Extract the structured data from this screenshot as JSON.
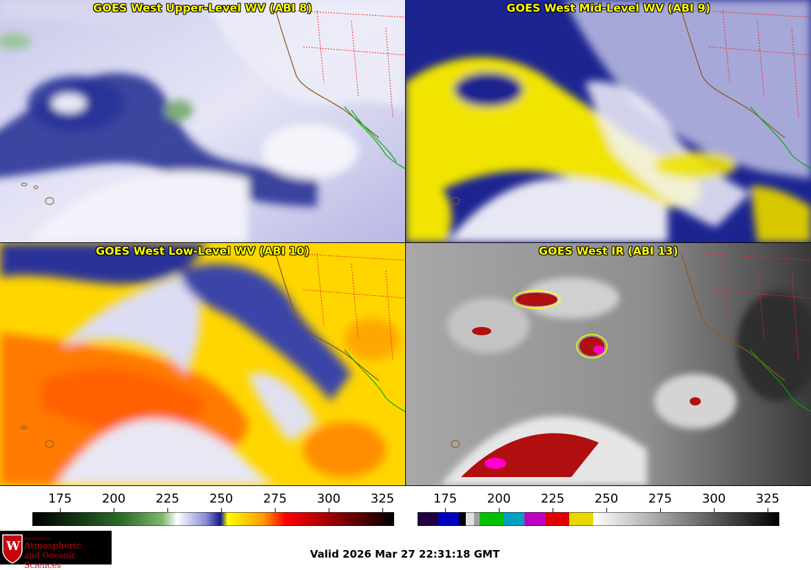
{
  "panels": [
    {
      "title": "GOES West Upper-Level WV (ABI 8)"
    },
    {
      "title": "GOES West Mid-Level WV (ABI 9)"
    },
    {
      "title": "GOES West Low-Level WV (ABI 10)"
    },
    {
      "title": "GOES West IR (ABI 13)"
    }
  ],
  "colorbars": [
    {
      "ticks": [
        "175",
        "200",
        "225",
        "250",
        "275",
        "300",
        "325"
      ],
      "stops": [
        "#000000",
        "#0f2a0f",
        "#2f6e2a",
        "#7fb76d",
        "#ffffff",
        "#8a8ad8",
        "#141a8a",
        "#ffff00",
        "#ff9900",
        "#ff0000",
        "#b00000",
        "#5a0000",
        "#000000"
      ]
    },
    {
      "ticks": [
        "175",
        "200",
        "225",
        "250",
        "275",
        "300",
        "325"
      ]
    }
  ],
  "logo": {
    "line1": "Department of",
    "line2": "Atmospheric",
    "line3": "and Oceanic Sciences",
    "emblem": "W"
  },
  "valid_text": "Valid 2026 Mar 27 22:31:18 GMT"
}
